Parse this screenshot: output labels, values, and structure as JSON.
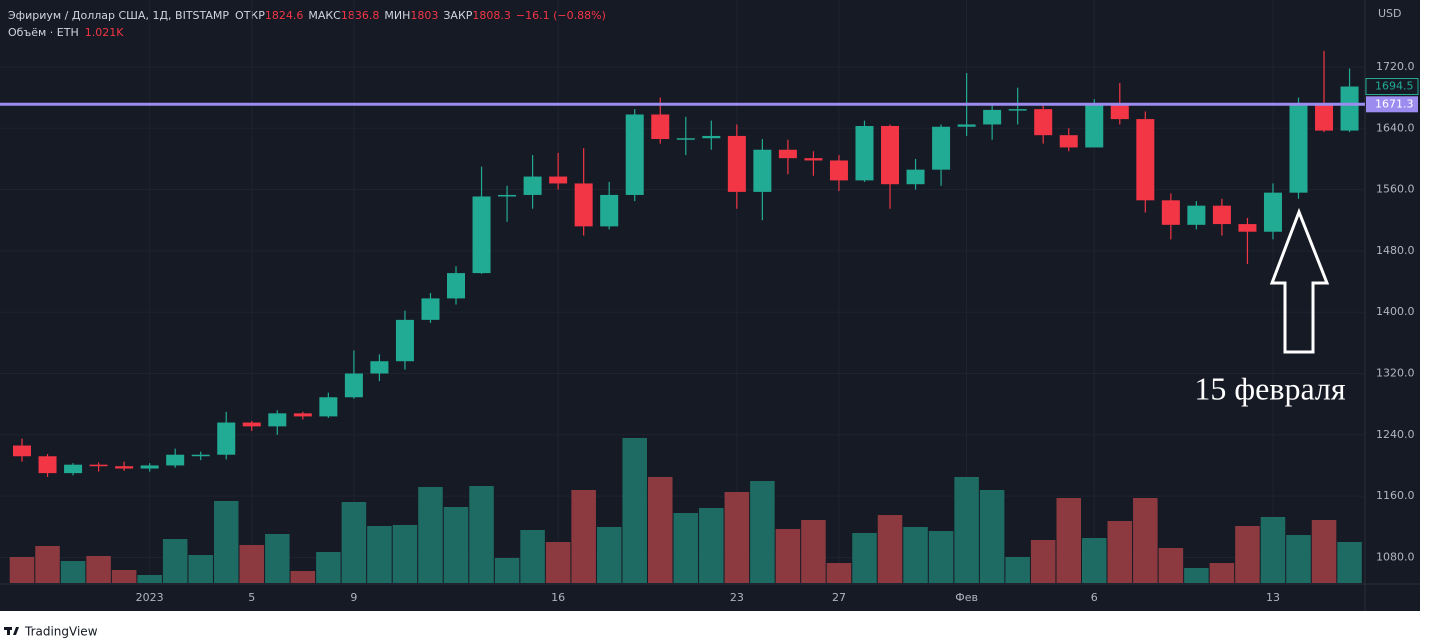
{
  "chart_data": {
    "type": "candlestick",
    "title": "Эфириум / Доллар США, 1Д, BITSTAMP",
    "header_fields": [
      {
        "label": "ОТКР",
        "value": 1824.6
      },
      {
        "label": "МАКС",
        "value": 1836.8
      },
      {
        "label": "МИН",
        "value": 1803.0
      },
      {
        "label": "ЗАКР",
        "value": 1808.3
      }
    ],
    "change": "−16.1 (−0.88%)",
    "volume_title": "Объём · ETH",
    "volume_value": "1.021K",
    "y_unit": "USD",
    "categories": [
      null,
      null,
      null,
      null,
      null,
      "2023",
      null,
      null,
      null,
      "5",
      null,
      null,
      null,
      "9",
      null,
      null,
      null,
      null,
      null,
      null,
      null,
      "16",
      null,
      null,
      null,
      null,
      null,
      null,
      "23",
      null,
      null,
      null,
      "27",
      null,
      null,
      null,
      null,
      "Фев",
      null,
      null,
      null,
      null,
      "6",
      null,
      null,
      null,
      null,
      null,
      null,
      "13",
      null,
      null,
      null
    ],
    "open": [
      1226,
      1212,
      1190,
      1201,
      1199,
      1196,
      1200,
      1214,
      1214,
      1256,
      1251,
      1268,
      1264,
      1289,
      1320,
      1336,
      1390,
      1418,
      1451,
      1551,
      1553,
      1577,
      1568,
      1512,
      1553,
      1658,
      1626,
      1627,
      1630,
      1557,
      1612,
      1601,
      1598,
      1572,
      1643,
      1567,
      1586,
      1642,
      1645,
      1664,
      1665,
      1631,
      1615,
      1673,
      1652,
      1546,
      1514,
      1539,
      1515,
      1505,
      1556,
      1673,
      1637
    ],
    "high": [
      1235,
      1215,
      1203,
      1204,
      1205,
      1203,
      1222,
      1218,
      1270,
      1258,
      1272,
      1270,
      1295,
      1350,
      1345,
      1402,
      1425,
      1460,
      1590,
      1565,
      1605,
      1608,
      1614,
      1570,
      1665,
      1680,
      1655,
      1650,
      1645,
      1626,
      1625,
      1610,
      1605,
      1650,
      1645,
      1600,
      1645,
      1712,
      1672,
      1693,
      1672,
      1640,
      1678,
      1699,
      1662,
      1555,
      1545,
      1548,
      1523,
      1568,
      1680,
      1741,
      1718
    ],
    "low": [
      1205,
      1185,
      1187,
      1192,
      1193,
      1192,
      1197,
      1207,
      1208,
      1245,
      1240,
      1260,
      1262,
      1287,
      1310,
      1325,
      1386,
      1410,
      1450,
      1518,
      1535,
      1560,
      1500,
      1508,
      1545,
      1620,
      1605,
      1612,
      1535,
      1520,
      1580,
      1578,
      1558,
      1570,
      1535,
      1560,
      1565,
      1630,
      1625,
      1645,
      1620,
      1610,
      1615,
      1645,
      1530,
      1495,
      1508,
      1500,
      1463,
      1495,
      1548,
      1635,
      1635
    ],
    "close": [
      1212,
      1190,
      1201,
      1199,
      1196,
      1200,
      1214,
      1214,
      1256,
      1251,
      1268,
      1264,
      1289,
      1320,
      1336,
      1390,
      1418,
      1451,
      1551,
      1553,
      1577,
      1568,
      1512,
      1553,
      1658,
      1626,
      1627,
      1630,
      1557,
      1612,
      1601,
      1598,
      1572,
      1643,
      1567,
      1586,
      1642,
      1645,
      1664,
      1665,
      1631,
      1615,
      1673,
      1652,
      1546,
      1514,
      1539,
      1515,
      1505,
      1556,
      1673,
      1637,
      1694.5
    ],
    "volume": [
      26,
      37,
      22,
      27,
      13,
      8,
      44,
      28,
      82,
      38,
      49,
      12,
      31,
      81,
      57,
      58,
      96,
      76,
      97,
      25,
      53,
      41,
      93,
      56,
      145,
      106,
      70,
      75,
      91,
      102,
      54,
      63,
      20,
      50,
      68,
      56,
      52,
      106,
      93,
      26,
      43,
      85,
      45,
      62,
      85,
      35,
      15,
      20,
      57,
      66,
      48,
      63,
      41
    ],
    "up_color": "#22ab94",
    "down_color": "#f23645",
    "volume_up_color": "#1d6b62",
    "volume_down_color": "#8c3a40",
    "ylim": [
      1046.6,
      1807.4
    ],
    "yticks": [
      {
        "value": 1080,
        "label": "1080.0"
      },
      {
        "value": 1160,
        "label": "1160.0"
      },
      {
        "value": 1240,
        "label": "1240.0"
      },
      {
        "value": 1320,
        "label": "1320.0"
      },
      {
        "value": 1400,
        "label": "1400.0"
      },
      {
        "value": 1480,
        "label": "1480.0"
      },
      {
        "value": 1560,
        "label": "1560.0"
      },
      {
        "value": 1640,
        "label": "1640.0"
      },
      {
        "value": 1720,
        "label": "1720.0"
      }
    ],
    "volume_ylim": [
      0,
      300
    ],
    "hline": {
      "value": 1671.3,
      "color": "#9c8cf0"
    },
    "annotation": "15 февраля",
    "brand": "TradingView"
  }
}
